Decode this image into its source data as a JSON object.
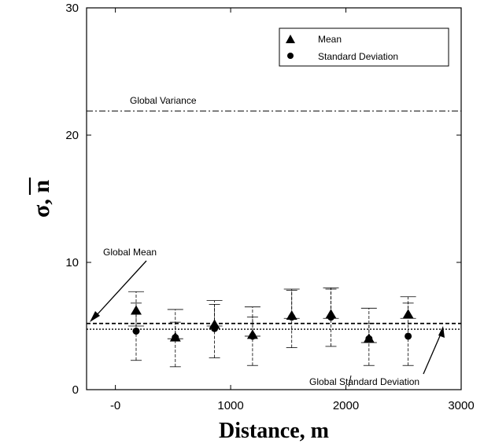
{
  "chart_data": {
    "type": "scatter",
    "xlabel": "Distance, m",
    "ylabel": "σ, n",
    "xlim": [
      -250,
      3000
    ],
    "ylim": [
      0,
      30
    ],
    "xticks": [
      {
        "value": 0,
        "label": "-0"
      },
      {
        "value": 1000,
        "label": "1000"
      },
      {
        "value": 2000,
        "label": "2000"
      },
      {
        "value": 3000,
        "label": "3000"
      }
    ],
    "yticks": [
      {
        "value": 0,
        "label": "0"
      },
      {
        "value": 10,
        "label": "10"
      },
      {
        "value": 20,
        "label": "20"
      },
      {
        "value": 30,
        "label": "30"
      }
    ],
    "grid": false,
    "legend_position": "top-right",
    "series": [
      {
        "name": "Mean",
        "marker": "triangle",
        "x": [
          180,
          520,
          860,
          1190,
          1530,
          1870,
          2200,
          2540
        ],
        "y": [
          6.2,
          4.1,
          5.1,
          4.3,
          5.8,
          5.9,
          4.0,
          5.9
        ],
        "err_low": [
          5.0,
          4.0,
          5.0,
          4.2,
          5.6,
          5.6,
          3.7,
          5.6
        ],
        "err_high": [
          7.7,
          6.3,
          7.0,
          6.5,
          7.9,
          8.0,
          6.4,
          7.3
        ]
      },
      {
        "name": "Standard Deviation",
        "marker": "circle",
        "x": [
          180,
          520,
          860,
          1190,
          1530,
          1870,
          2200,
          2540
        ],
        "y": [
          4.6,
          4.1,
          4.8,
          4.2,
          5.7,
          5.7,
          4.0,
          4.2
        ],
        "err_low": [
          2.3,
          1.8,
          2.5,
          1.9,
          3.3,
          3.4,
          1.9,
          1.9
        ],
        "err_high": [
          6.8,
          5.3,
          6.7,
          5.7,
          7.8,
          7.9,
          5.2,
          6.8
        ]
      }
    ],
    "reference_lines": [
      {
        "label": "Global Variance",
        "y": 21.9,
        "style": "dashdot"
      },
      {
        "label": "Global Mean",
        "y": 5.2,
        "style": "dashed"
      },
      {
        "label": "Global Standard Deviation",
        "y": 4.75,
        "style": "dotted"
      }
    ]
  }
}
